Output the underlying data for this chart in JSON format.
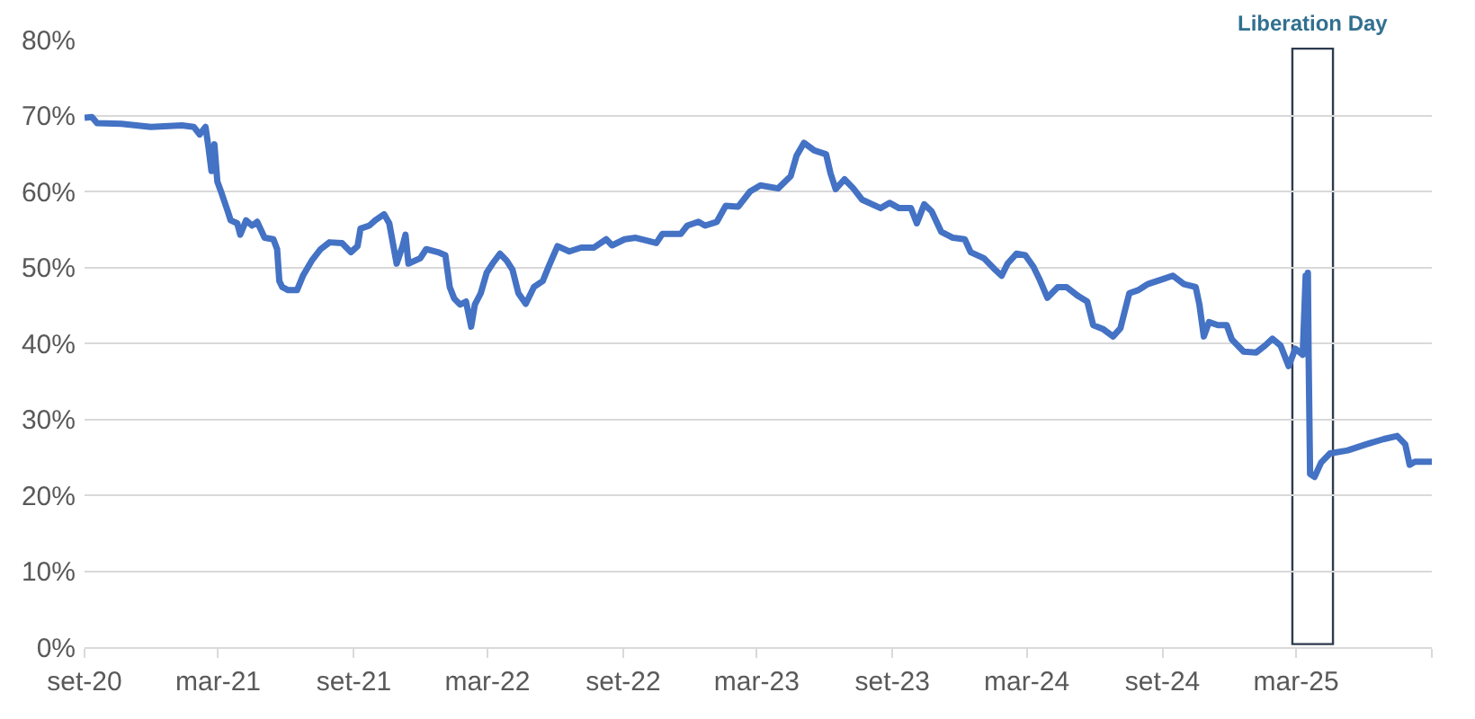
{
  "chart_data": {
    "type": "line",
    "color": "#4472c4",
    "marker": "none",
    "line_style": "solid",
    "grid": "y",
    "x": [
      "2020-09-01",
      "2020-09-11",
      "2020-09-18",
      "2020-10-21",
      "2020-11-30",
      "2021-01-11",
      "2021-01-27",
      "2021-02-04",
      "2021-02-12",
      "2021-02-16",
      "2021-02-20",
      "2021-02-24",
      "2021-02-28",
      "2021-03-06",
      "2021-03-14",
      "2021-03-18",
      "2021-03-27",
      "2021-03-31",
      "2021-04-08",
      "2021-04-16",
      "2021-04-23",
      "2021-05-03",
      "2021-05-15",
      "2021-05-20",
      "2021-05-23",
      "2021-05-27",
      "2021-06-04",
      "2021-06-16",
      "2021-06-24",
      "2021-07-06",
      "2021-07-18",
      "2021-07-30",
      "2021-08-16",
      "2021-08-28",
      "2021-09-06",
      "2021-09-10",
      "2021-09-22",
      "2021-09-30",
      "2021-10-12",
      "2021-10-19",
      "2021-10-29",
      "2021-11-06",
      "2021-11-10",
      "2021-11-14",
      "2021-11-30",
      "2021-12-08",
      "2021-12-24",
      "2022-01-03",
      "2022-01-09",
      "2022-01-15",
      "2022-01-23",
      "2022-01-31",
      "2022-02-07",
      "2022-02-12",
      "2022-02-20",
      "2022-02-28",
      "2022-03-08",
      "2022-03-18",
      "2022-03-27",
      "2022-04-04",
      "2022-04-12",
      "2022-04-22",
      "2022-05-03",
      "2022-05-15",
      "2022-05-23",
      "2022-06-04",
      "2022-06-20",
      "2022-07-06",
      "2022-07-23",
      "2022-08-09",
      "2022-08-17",
      "2022-09-03",
      "2022-09-18",
      "2022-10-04",
      "2022-10-16",
      "2022-10-24",
      "2022-11-18",
      "2022-11-27",
      "2022-12-12",
      "2022-12-21",
      "2023-01-06",
      "2023-01-18",
      "2023-02-04",
      "2023-02-20",
      "2023-03-06",
      "2023-03-30",
      "2023-04-16",
      "2023-04-24",
      "2023-05-04",
      "2023-05-18",
      "2023-06-03",
      "2023-06-09",
      "2023-06-16",
      "2023-06-28",
      "2023-07-10",
      "2023-07-22",
      "2023-08-16",
      "2023-08-28",
      "2023-09-10",
      "2023-09-26",
      "2023-10-04",
      "2023-10-14",
      "2023-10-24",
      "2023-11-06",
      "2023-11-22",
      "2023-12-08",
      "2023-12-16",
      "2024-01-03",
      "2024-01-18",
      "2024-01-27",
      "2024-02-04",
      "2024-02-16",
      "2024-02-28",
      "2024-03-10",
      "2024-03-18",
      "2024-03-29",
      "2024-04-12",
      "2024-04-24",
      "2024-05-10",
      "2024-05-22",
      "2024-05-30",
      "2024-06-12",
      "2024-06-26",
      "2024-07-06",
      "2024-07-18",
      "2024-07-30",
      "2024-08-12",
      "2024-09-03",
      "2024-09-15",
      "2024-09-30",
      "2024-10-16",
      "2024-10-21",
      "2024-10-27",
      "2024-11-03",
      "2024-11-15",
      "2024-11-27",
      "2024-12-04",
      "2024-12-20",
      "2025-01-06",
      "2025-01-18",
      "2025-01-28",
      "2025-02-08",
      "2025-02-19",
      "2025-02-28",
      "2025-03-10",
      "2025-03-14",
      "2025-03-16",
      "2025-03-17",
      "2025-03-18",
      "2025-03-20",
      "2025-03-26",
      "2025-04-04",
      "2025-04-16",
      "2025-05-10",
      "2025-06-04",
      "2025-06-28",
      "2025-07-16",
      "2025-07-27",
      "2025-08-02",
      "2025-08-09",
      "2025-09-01"
    ],
    "values": [
      69.7,
      69.8,
      69.0,
      68.9,
      68.5,
      68.7,
      68.5,
      67.5,
      68.5,
      65.8,
      62.7,
      66.2,
      61.3,
      59.7,
      57.4,
      56.2,
      55.8,
      54.3,
      56.2,
      55.5,
      56.0,
      53.9,
      53.7,
      52.4,
      48.2,
      47.4,
      47.0,
      47.0,
      48.9,
      50.9,
      52.4,
      53.3,
      53.2,
      52.0,
      52.8,
      55.1,
      55.5,
      56.2,
      57.0,
      55.8,
      50.5,
      52.8,
      54.3,
      50.5,
      51.2,
      52.4,
      52.0,
      51.6,
      47.4,
      45.9,
      45.1,
      45.5,
      42.2,
      45.1,
      46.6,
      49.3,
      50.5,
      51.8,
      50.9,
      49.7,
      46.6,
      45.2,
      47.4,
      48.2,
      50.1,
      52.8,
      52.1,
      52.6,
      52.6,
      53.7,
      52.9,
      53.7,
      53.9,
      53.5,
      53.2,
      54.4,
      54.4,
      55.5,
      56.0,
      55.5,
      56.0,
      58.1,
      58.0,
      60.0,
      60.8,
      60.4,
      62.0,
      64.7,
      66.4,
      65.4,
      64.9,
      62.4,
      60.3,
      61.6,
      60.4,
      58.9,
      57.8,
      58.5,
      57.8,
      57.8,
      55.8,
      58.3,
      57.4,
      54.7,
      53.9,
      53.7,
      52.0,
      51.2,
      49.7,
      48.9,
      50.5,
      51.8,
      51.6,
      50.1,
      48.5,
      46.0,
      47.4,
      47.4,
      46.2,
      45.5,
      42.4,
      41.9,
      40.9,
      42.0,
      46.6,
      47.0,
      47.8,
      48.5,
      48.9,
      47.8,
      47.4,
      45.1,
      40.9,
      42.8,
      42.4,
      42.4,
      40.5,
      38.9,
      38.8,
      39.7,
      40.6,
      39.7,
      37.0,
      39.3,
      38.5,
      48.9,
      40.0,
      49.3,
      38.5,
      22.8,
      22.4,
      24.3,
      25.5,
      25.9,
      26.7,
      27.4,
      27.8,
      26.7,
      24.0,
      24.4,
      24.4
    ],
    "xlim": [
      "2020-09-01",
      "2025-09-01"
    ],
    "xticks": [
      {
        "value": "2020-09-01",
        "label": "set-20"
      },
      {
        "value": "2021-03-01",
        "label": "mar-21"
      },
      {
        "value": "2021-09-01",
        "label": "set-21"
      },
      {
        "value": "2022-03-01",
        "label": "mar-22"
      },
      {
        "value": "2022-09-01",
        "label": "set-22"
      },
      {
        "value": "2023-03-01",
        "label": "mar-23"
      },
      {
        "value": "2023-09-01",
        "label": "set-23"
      },
      {
        "value": "2024-03-01",
        "label": "mar-24"
      },
      {
        "value": "2024-09-01",
        "label": "set-24"
      },
      {
        "value": "2025-03-01",
        "label": "mar-25"
      },
      {
        "value": "2025-09-01",
        "label": null
      }
    ],
    "ylim": [
      0,
      80
    ],
    "yticks": [
      {
        "value": 0,
        "label": "0%"
      },
      {
        "value": 10,
        "label": "10%"
      },
      {
        "value": 20,
        "label": "20%"
      },
      {
        "value": 30,
        "label": "30%"
      },
      {
        "value": 40,
        "label": "40%"
      },
      {
        "value": 50,
        "label": "50%"
      },
      {
        "value": 60,
        "label": "60%"
      },
      {
        "value": 70,
        "label": "70%"
      },
      {
        "value": 80,
        "label": "80%"
      }
    ],
    "bands": [
      {
        "axis": "x",
        "from": "2025-02-24",
        "to": "2025-04-20",
        "label": "Liberation Day",
        "color": "#2e3b4e"
      }
    ]
  }
}
